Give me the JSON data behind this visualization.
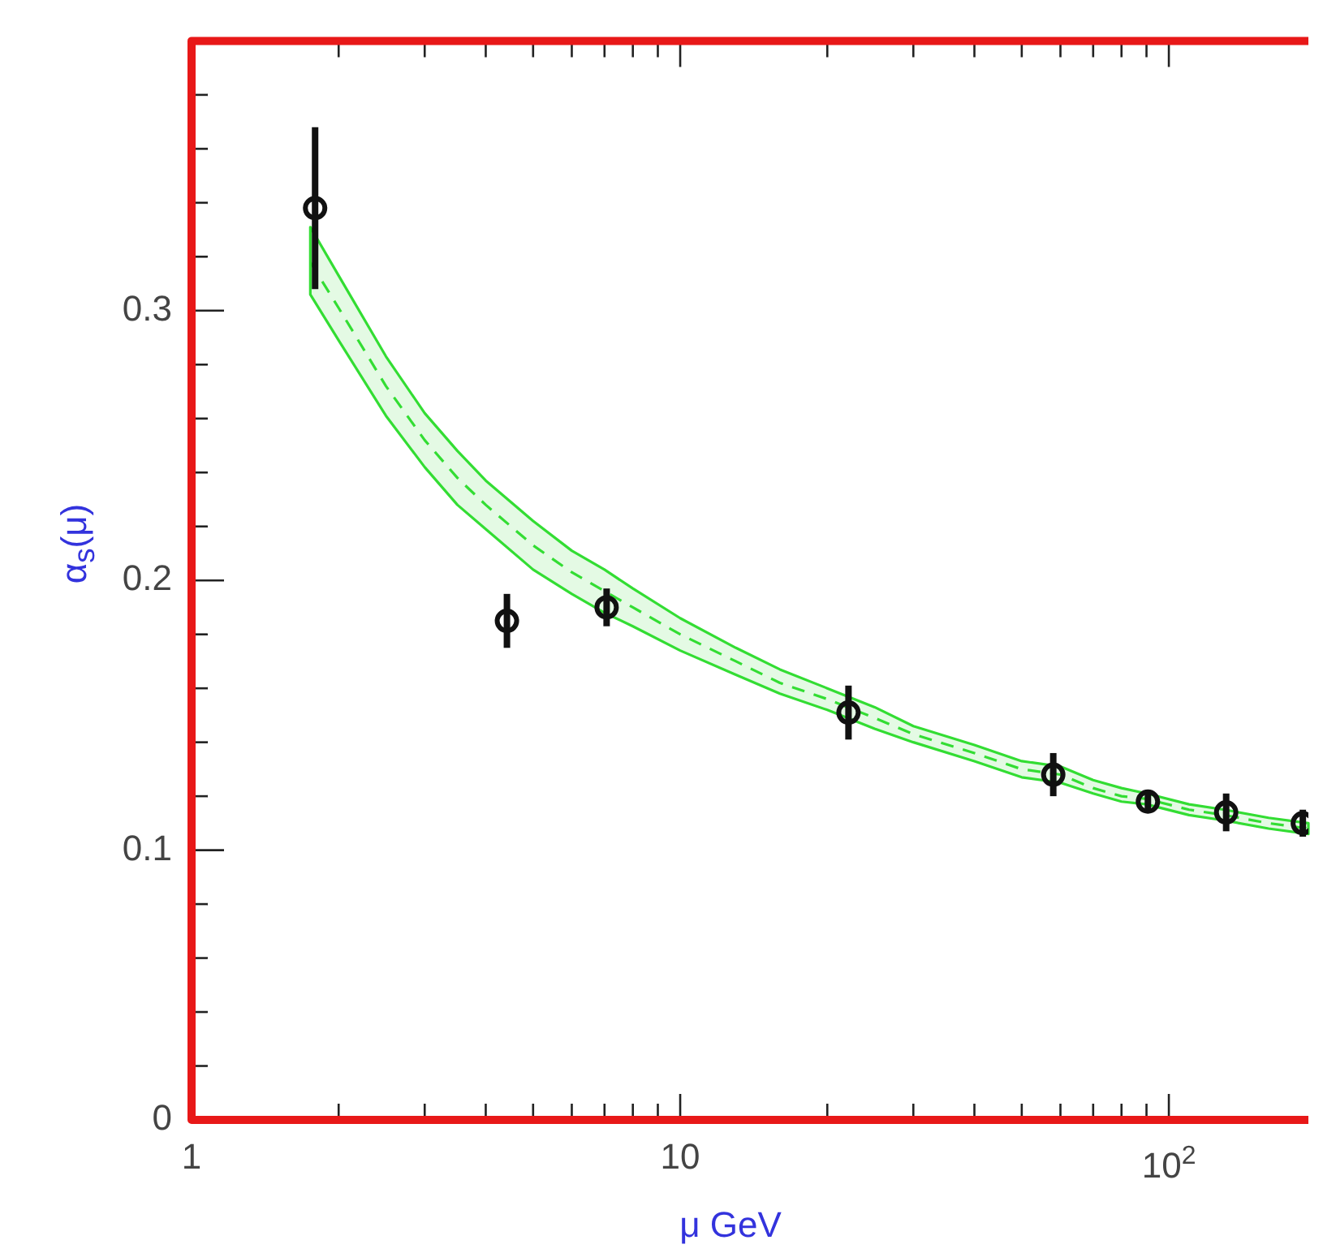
{
  "chart_data": {
    "type": "scatter",
    "xlabel": "μ GeV",
    "ylabel": "α$_{s}$(μ)",
    "log": "x",
    "grid": false,
    "legend": false,
    "xlim": [
      1,
      193
    ],
    "ylim": [
      0,
      0.4
    ],
    "xticks": [
      1,
      {
        "value": 2,
        "label": null
      },
      {
        "value": 3,
        "label": null
      },
      {
        "value": 4,
        "label": null
      },
      {
        "value": 5,
        "label": null
      },
      {
        "value": 6,
        "label": null
      },
      {
        "value": 7,
        "label": null
      },
      {
        "value": 8,
        "label": null
      },
      {
        "value": 9,
        "label": null
      },
      10,
      {
        "value": 20,
        "label": null
      },
      {
        "value": 30,
        "label": null
      },
      {
        "value": 40,
        "label": null
      },
      {
        "value": 50,
        "label": null
      },
      {
        "value": 60,
        "label": null
      },
      {
        "value": 70,
        "label": null
      },
      {
        "value": 80,
        "label": null
      },
      {
        "value": 90,
        "label": null
      },
      {
        "value": 100,
        "label": "10$^{2}$"
      }
    ],
    "yticks": [
      0,
      {
        "value": 0.02,
        "label": null
      },
      {
        "value": 0.04,
        "label": null
      },
      {
        "value": 0.06,
        "label": null
      },
      {
        "value": 0.08,
        "label": null
      },
      0.1,
      {
        "value": 0.12,
        "label": null
      },
      {
        "value": 0.14,
        "label": null
      },
      {
        "value": 0.16,
        "label": null
      },
      {
        "value": 0.18,
        "label": null
      },
      0.2,
      {
        "value": 0.22,
        "label": null
      },
      {
        "value": 0.24,
        "label": null
      },
      {
        "value": 0.26,
        "label": null
      },
      {
        "value": 0.28,
        "label": null
      },
      0.3,
      {
        "value": 0.32,
        "label": null
      },
      {
        "value": 0.34,
        "label": null
      },
      {
        "value": 0.36,
        "label": null
      },
      {
        "value": 0.38,
        "label": null
      }
    ],
    "series": [
      {
        "type": "line",
        "color": "#33dd33",
        "line_style": "dashed",
        "marker": "none",
        "x": [
          1.75,
          2,
          2.5,
          3,
          3.5,
          4,
          5,
          6,
          7,
          8,
          10,
          13,
          16,
          20,
          25,
          30,
          40,
          50,
          60,
          70,
          80,
          90,
          110,
          130,
          160,
          193
        ],
        "values": [
          0.318,
          0.301,
          0.272,
          0.252,
          0.238,
          0.228,
          0.213,
          0.203,
          0.196,
          0.19,
          0.18,
          0.17,
          0.162,
          0.156,
          0.149,
          0.143,
          0.136,
          0.13,
          0.128,
          0.123,
          0.12,
          0.119,
          0.115,
          0.113,
          0.11,
          0.108
        ],
        "lower": [
          0.306,
          0.289,
          0.261,
          0.242,
          0.228,
          0.219,
          0.204,
          0.195,
          0.188,
          0.183,
          0.174,
          0.165,
          0.158,
          0.152,
          0.145,
          0.14,
          0.133,
          0.127,
          0.125,
          0.121,
          0.118,
          0.117,
          0.113,
          0.111,
          0.108,
          0.106
        ],
        "upper": [
          0.331,
          0.313,
          0.283,
          0.262,
          0.248,
          0.237,
          0.222,
          0.211,
          0.204,
          0.197,
          0.186,
          0.175,
          0.167,
          0.16,
          0.153,
          0.146,
          0.139,
          0.133,
          0.131,
          0.126,
          0.123,
          0.121,
          0.117,
          0.115,
          0.112,
          0.11
        ]
      },
      {
        "type": "scatter",
        "color": "#111111",
        "marker": "circle",
        "x": [
          1.79,
          4.42,
          7.07,
          22.1,
          58,
          90.6,
          131,
          188
        ],
        "values": [
          0.338,
          0.185,
          0.19,
          0.151,
          0.128,
          0.118,
          0.114,
          0.11
        ],
        "errors": [
          0.03,
          0.01,
          0.007,
          0.01,
          0.008,
          0.004,
          0.007,
          0.005
        ]
      }
    ]
  }
}
